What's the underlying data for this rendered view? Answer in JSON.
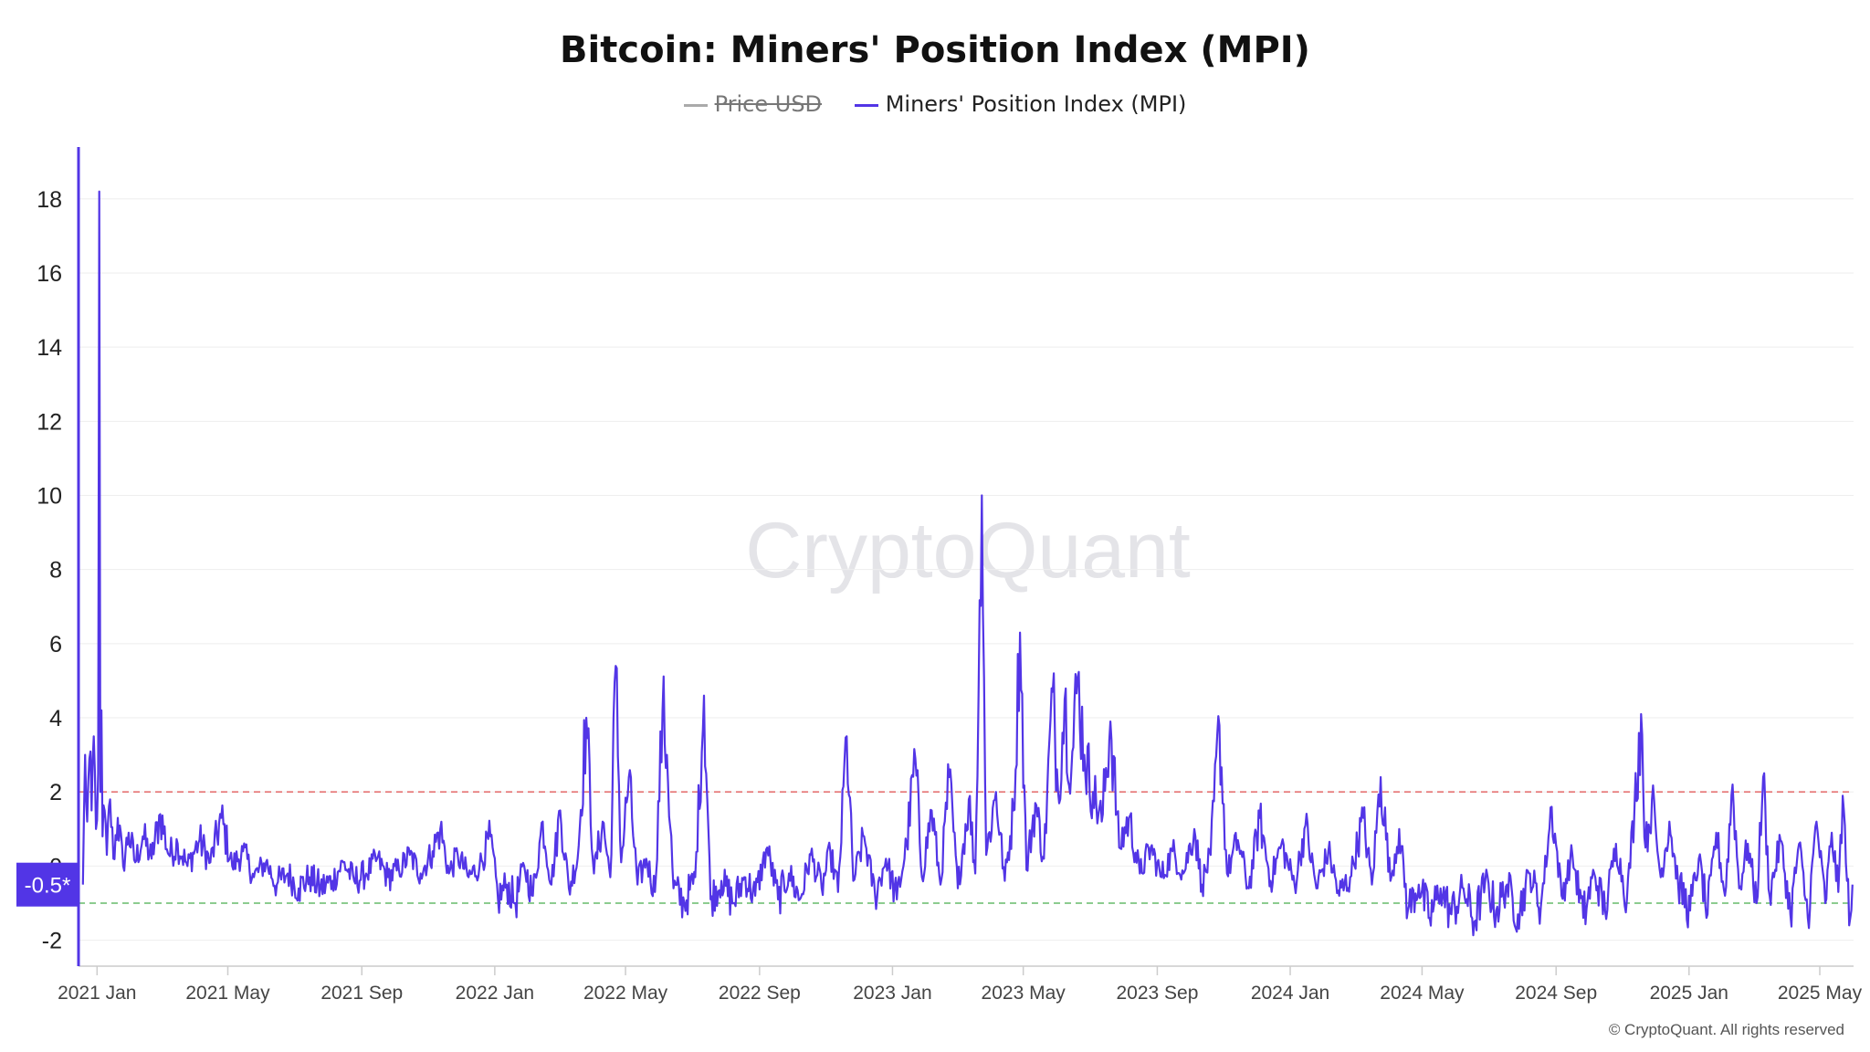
{
  "chart_data": {
    "type": "line",
    "title": "Bitcoin: Miners' Position Index (MPI)",
    "legend": [
      {
        "name": "Price USD",
        "color": "#999999",
        "hidden": true
      },
      {
        "name": "Miners' Position Index (MPI)",
        "color": "#5235e6",
        "hidden": false
      }
    ],
    "watermark": "CryptoQuant",
    "copyright": "© CryptoQuant. All rights reserved",
    "y_axis": {
      "ticks": [
        -2,
        0,
        2,
        4,
        6,
        8,
        10,
        12,
        14,
        16,
        18
      ],
      "tick_labels": [
        "-2",
        "0",
        "2",
        "4",
        "6",
        "8",
        "10",
        "12",
        "14",
        "16",
        "18"
      ],
      "range": [
        -2.7,
        19.3
      ]
    },
    "x_axis": {
      "range": [
        "2020-12-15",
        "2025-06-01"
      ],
      "ticks": [
        "2021-01-01",
        "2021-05-01",
        "2021-09-01",
        "2022-01-01",
        "2022-05-01",
        "2022-09-01",
        "2023-01-01",
        "2023-05-01",
        "2023-09-01",
        "2024-01-01",
        "2024-05-01",
        "2024-09-01",
        "2025-01-01",
        "2025-05-01"
      ],
      "tick_labels": [
        "2021 Jan",
        "2021 May",
        "2021 Sep",
        "2022 Jan",
        "2022 May",
        "2022 Sep",
        "2023 Jan",
        "2023 May",
        "2023 Sep",
        "2024 Jan",
        "2024 May",
        "2024 Sep",
        "2025 Jan",
        "2025 May"
      ]
    },
    "reference_lines": [
      {
        "value": 2,
        "color": "#e57373",
        "style": "dashed"
      },
      {
        "value": -1,
        "color": "#66bb6a",
        "style": "dashed"
      }
    ],
    "current_value_label": "-0.5*",
    "grid": true,
    "series": [
      {
        "name": "Miners' Position Index (MPI)",
        "color": "#5235e6",
        "points": [
          [
            "2020-12-19",
            -0.5
          ],
          [
            "2020-12-21",
            3.0
          ],
          [
            "2020-12-23",
            1.2
          ],
          [
            "2020-12-25",
            2.9
          ],
          [
            "2020-12-27",
            1.5
          ],
          [
            "2020-12-29",
            3.5
          ],
          [
            "2020-12-31",
            1.0
          ],
          [
            "2021-01-02",
            2.5
          ],
          [
            "2021-01-03",
            18.2
          ],
          [
            "2021-01-04",
            2.0
          ],
          [
            "2021-01-05",
            4.2
          ],
          [
            "2021-01-06",
            0.8
          ],
          [
            "2021-01-08",
            1.5
          ],
          [
            "2021-01-10",
            0.3
          ],
          [
            "2021-01-13",
            1.8
          ],
          [
            "2021-01-16",
            0.2
          ],
          [
            "2021-01-20",
            1.3
          ],
          [
            "2021-01-25",
            0.0
          ],
          [
            "2021-01-30",
            0.9
          ],
          [
            "2021-02-05",
            0.1
          ],
          [
            "2021-02-12",
            0.8
          ],
          [
            "2021-02-20",
            0.2
          ],
          [
            "2021-02-28",
            1.4
          ],
          [
            "2021-03-08",
            0.3
          ],
          [
            "2021-03-16",
            0.6
          ],
          [
            "2021-03-25",
            0.0
          ],
          [
            "2021-04-05",
            0.7
          ],
          [
            "2021-04-15",
            0.1
          ],
          [
            "2021-04-25",
            1.3
          ],
          [
            "2021-05-05",
            0.0
          ],
          [
            "2021-05-15",
            0.4
          ],
          [
            "2021-05-25",
            -0.3
          ],
          [
            "2021-06-05",
            0.1
          ],
          [
            "2021-06-15",
            -0.5
          ],
          [
            "2021-06-25",
            -0.2
          ],
          [
            "2021-07-05",
            -0.6
          ],
          [
            "2021-07-15",
            -0.3
          ],
          [
            "2021-07-25",
            -0.6
          ],
          [
            "2021-08-05",
            -0.4
          ],
          [
            "2021-08-15",
            0.1
          ],
          [
            "2021-08-25",
            -0.4
          ],
          [
            "2021-09-05",
            -0.2
          ],
          [
            "2021-09-15",
            0.2
          ],
          [
            "2021-09-25",
            -0.3
          ],
          [
            "2021-10-05",
            -0.1
          ],
          [
            "2021-10-15",
            0.3
          ],
          [
            "2021-10-25",
            -0.2
          ],
          [
            "2021-11-05",
            0.4
          ],
          [
            "2021-11-12",
            1.0
          ],
          [
            "2021-11-20",
            -0.2
          ],
          [
            "2021-11-28",
            0.3
          ],
          [
            "2021-12-08",
            -0.3
          ],
          [
            "2021-12-18",
            0.0
          ],
          [
            "2021-12-28",
            0.8
          ],
          [
            "2022-01-04",
            -0.9
          ],
          [
            "2022-01-12",
            -0.5
          ],
          [
            "2022-01-20",
            -1.0
          ],
          [
            "2022-01-28",
            0.0
          ],
          [
            "2022-02-05",
            -0.8
          ],
          [
            "2022-02-14",
            1.2
          ],
          [
            "2022-02-22",
            -0.5
          ],
          [
            "2022-03-02",
            1.5
          ],
          [
            "2022-03-10",
            -0.6
          ],
          [
            "2022-03-18",
            0.2
          ],
          [
            "2022-03-26",
            4.0
          ],
          [
            "2022-04-02",
            -0.2
          ],
          [
            "2022-04-10",
            1.2
          ],
          [
            "2022-04-17",
            -0.3
          ],
          [
            "2022-04-22",
            5.4
          ],
          [
            "2022-04-27",
            0.1
          ],
          [
            "2022-05-04",
            2.4
          ],
          [
            "2022-05-12",
            -0.5
          ],
          [
            "2022-05-20",
            0.2
          ],
          [
            "2022-05-28",
            -0.7
          ],
          [
            "2022-06-04",
            4.2
          ],
          [
            "2022-06-08",
            3.0
          ],
          [
            "2022-06-14",
            -0.6
          ],
          [
            "2022-06-24",
            -1.0
          ],
          [
            "2022-07-04",
            -0.3
          ],
          [
            "2022-07-12",
            4.6
          ],
          [
            "2022-07-18",
            -0.9
          ],
          [
            "2022-07-28",
            -0.4
          ],
          [
            "2022-08-08",
            -1.0
          ],
          [
            "2022-08-18",
            -0.3
          ],
          [
            "2022-08-28",
            -0.8
          ],
          [
            "2022-09-08",
            0.5
          ],
          [
            "2022-09-18",
            -0.9
          ],
          [
            "2022-09-28",
            -0.2
          ],
          [
            "2022-10-08",
            -0.9
          ],
          [
            "2022-10-18",
            0.3
          ],
          [
            "2022-10-28",
            -0.6
          ],
          [
            "2022-11-05",
            0.4
          ],
          [
            "2022-11-12",
            -0.7
          ],
          [
            "2022-11-20",
            3.5
          ],
          [
            "2022-11-26",
            -0.4
          ],
          [
            "2022-12-06",
            0.8
          ],
          [
            "2022-12-16",
            -0.8
          ],
          [
            "2022-12-26",
            0.2
          ],
          [
            "2023-01-05",
            -0.9
          ],
          [
            "2023-01-14",
            0.6
          ],
          [
            "2023-01-22",
            2.9
          ],
          [
            "2023-01-28",
            -0.3
          ],
          [
            "2023-02-06",
            1.5
          ],
          [
            "2023-02-14",
            -0.5
          ],
          [
            "2023-02-22",
            2.4
          ],
          [
            "2023-03-02",
            -0.6
          ],
          [
            "2023-03-12",
            1.8
          ],
          [
            "2023-03-18",
            -0.2
          ],
          [
            "2023-03-24",
            10.0
          ],
          [
            "2023-03-28",
            0.3
          ],
          [
            "2023-04-06",
            2.0
          ],
          [
            "2023-04-14",
            -0.4
          ],
          [
            "2023-04-22",
            1.5
          ],
          [
            "2023-04-28",
            6.3
          ],
          [
            "2023-05-04",
            -0.1
          ],
          [
            "2023-05-12",
            1.7
          ],
          [
            "2023-05-20",
            0.2
          ],
          [
            "2023-05-28",
            4.7
          ],
          [
            "2023-06-02",
            2.0
          ],
          [
            "2023-06-08",
            4.5
          ],
          [
            "2023-06-14",
            2.5
          ],
          [
            "2023-06-20",
            5.1
          ],
          [
            "2023-06-26",
            3.0
          ],
          [
            "2023-07-04",
            2.0
          ],
          [
            "2023-07-12",
            1.2
          ],
          [
            "2023-07-20",
            3.9
          ],
          [
            "2023-07-28",
            0.5
          ],
          [
            "2023-08-06",
            1.3
          ],
          [
            "2023-08-16",
            -0.2
          ],
          [
            "2023-08-26",
            0.5
          ],
          [
            "2023-09-05",
            -0.3
          ],
          [
            "2023-09-15",
            0.4
          ],
          [
            "2023-09-25",
            -0.2
          ],
          [
            "2023-10-05",
            1.0
          ],
          [
            "2023-10-12",
            -0.5
          ],
          [
            "2023-10-20",
            0.3
          ],
          [
            "2023-10-28",
            3.8
          ],
          [
            "2023-11-04",
            -0.2
          ],
          [
            "2023-11-14",
            0.7
          ],
          [
            "2023-11-24",
            -0.6
          ],
          [
            "2023-12-04",
            1.3
          ],
          [
            "2023-12-14",
            -0.4
          ],
          [
            "2023-12-24",
            0.6
          ],
          [
            "2024-01-05",
            -0.5
          ],
          [
            "2024-01-15",
            1.1
          ],
          [
            "2024-01-25",
            -0.6
          ],
          [
            "2024-02-05",
            0.4
          ],
          [
            "2024-02-15",
            -0.8
          ],
          [
            "2024-02-25",
            -0.3
          ],
          [
            "2024-03-08",
            1.3
          ],
          [
            "2024-03-16",
            -0.5
          ],
          [
            "2024-03-24",
            2.4
          ],
          [
            "2024-04-02",
            -0.4
          ],
          [
            "2024-04-10",
            1.0
          ],
          [
            "2024-04-18",
            -1.2
          ],
          [
            "2024-04-28",
            -0.5
          ],
          [
            "2024-05-08",
            -1.4
          ],
          [
            "2024-05-18",
            -0.6
          ],
          [
            "2024-05-28",
            -1.3
          ],
          [
            "2024-06-08",
            -0.6
          ],
          [
            "2024-06-18",
            -1.5
          ],
          [
            "2024-06-28",
            -0.4
          ],
          [
            "2024-07-08",
            -1.2
          ],
          [
            "2024-07-18",
            -0.5
          ],
          [
            "2024-07-28",
            -1.3
          ],
          [
            "2024-08-08",
            -0.2
          ],
          [
            "2024-08-18",
            -1.1
          ],
          [
            "2024-08-28",
            1.6
          ],
          [
            "2024-09-06",
            -0.8
          ],
          [
            "2024-09-16",
            0.3
          ],
          [
            "2024-09-26",
            -1.4
          ],
          [
            "2024-10-06",
            -0.2
          ],
          [
            "2024-10-16",
            -1.2
          ],
          [
            "2024-10-26",
            0.6
          ],
          [
            "2024-11-05",
            -0.9
          ],
          [
            "2024-11-12",
            1.6
          ],
          [
            "2024-11-18",
            4.1
          ],
          [
            "2024-11-22",
            0.5
          ],
          [
            "2024-11-28",
            1.8
          ],
          [
            "2024-12-06",
            -0.3
          ],
          [
            "2024-12-14",
            1.2
          ],
          [
            "2024-12-22",
            -0.5
          ],
          [
            "2025-01-02",
            -1.2
          ],
          [
            "2025-01-10",
            0.2
          ],
          [
            "2025-01-18",
            -1.3
          ],
          [
            "2025-01-26",
            0.9
          ],
          [
            "2025-02-03",
            -0.8
          ],
          [
            "2025-02-10",
            2.2
          ],
          [
            "2025-02-16",
            -0.6
          ],
          [
            "2025-02-24",
            0.6
          ],
          [
            "2025-03-04",
            -1.0
          ],
          [
            "2025-03-10",
            2.4
          ],
          [
            "2025-03-16",
            -0.8
          ],
          [
            "2025-03-26",
            0.7
          ],
          [
            "2025-04-04",
            -1.3
          ],
          [
            "2025-04-12",
            0.6
          ],
          [
            "2025-04-20",
            -1.4
          ],
          [
            "2025-04-28",
            1.2
          ],
          [
            "2025-05-06",
            -1.0
          ],
          [
            "2025-05-12",
            0.9
          ],
          [
            "2025-05-18",
            -0.7
          ],
          [
            "2025-05-22",
            1.9
          ],
          [
            "2025-05-26",
            -0.4
          ],
          [
            "2025-05-29",
            -1.4
          ],
          [
            "2025-05-31",
            -0.5
          ]
        ]
      }
    ]
  }
}
